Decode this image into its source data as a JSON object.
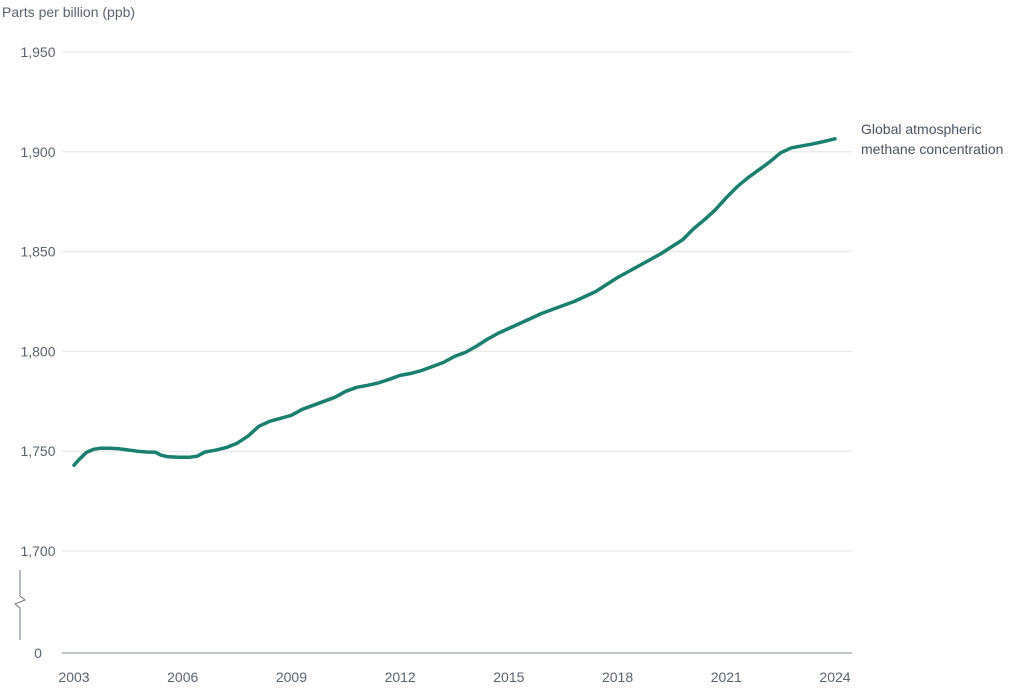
{
  "chart_data": {
    "type": "line",
    "ylabel": "Parts per billion (ppb)",
    "yticks": [
      "0",
      "1,700",
      "1,750",
      "1,800",
      "1,850",
      "1,900",
      "1,950"
    ],
    "xticks": [
      "2003",
      "2006",
      "2009",
      "2012",
      "2015",
      "2018",
      "2021",
      "2024"
    ],
    "y_axis_break": true,
    "ylim": [
      1700,
      1950
    ],
    "xlim": [
      2003,
      2024
    ],
    "grid": true,
    "series": [
      {
        "name_lines": [
          "Global atmospheric",
          "methane concentration"
        ],
        "color": "#1a7f6e",
        "points": [
          [
            2003.0,
            1743.0
          ],
          [
            2003.15,
            1746.0
          ],
          [
            2003.35,
            1749.5
          ],
          [
            2003.55,
            1751.0
          ],
          [
            2003.75,
            1751.5
          ],
          [
            2004.0,
            1751.5
          ],
          [
            2004.25,
            1751.2
          ],
          [
            2004.5,
            1750.6
          ],
          [
            2004.75,
            1750.0
          ],
          [
            2005.0,
            1749.6
          ],
          [
            2005.25,
            1749.5
          ],
          [
            2005.4,
            1748.0
          ],
          [
            2005.6,
            1747.2
          ],
          [
            2005.9,
            1747.0
          ],
          [
            2006.2,
            1747.0
          ],
          [
            2006.4,
            1747.5
          ],
          [
            2006.6,
            1749.5
          ],
          [
            2006.9,
            1750.5
          ],
          [
            2007.2,
            1751.8
          ],
          [
            2007.5,
            1754.0
          ],
          [
            2007.8,
            1757.5
          ],
          [
            2008.1,
            1762.5
          ],
          [
            2008.4,
            1765.0
          ],
          [
            2008.7,
            1766.5
          ],
          [
            2009.0,
            1768.0
          ],
          [
            2009.3,
            1771.0
          ],
          [
            2009.6,
            1773.0
          ],
          [
            2009.9,
            1775.0
          ],
          [
            2010.2,
            1777.0
          ],
          [
            2010.5,
            1780.0
          ],
          [
            2010.8,
            1782.0
          ],
          [
            2011.1,
            1783.0
          ],
          [
            2011.4,
            1784.2
          ],
          [
            2011.7,
            1786.0
          ],
          [
            2012.0,
            1788.0
          ],
          [
            2012.3,
            1789.0
          ],
          [
            2012.6,
            1790.5
          ],
          [
            2012.9,
            1792.5
          ],
          [
            2013.2,
            1794.5
          ],
          [
            2013.5,
            1797.5
          ],
          [
            2013.8,
            1799.5
          ],
          [
            2014.1,
            1802.5
          ],
          [
            2014.4,
            1806.0
          ],
          [
            2014.7,
            1809.0
          ],
          [
            2015.0,
            1811.5
          ],
          [
            2015.3,
            1814.0
          ],
          [
            2015.6,
            1816.5
          ],
          [
            2015.9,
            1819.0
          ],
          [
            2016.2,
            1821.0
          ],
          [
            2016.5,
            1823.0
          ],
          [
            2016.8,
            1825.0
          ],
          [
            2017.1,
            1827.5
          ],
          [
            2017.4,
            1830.0
          ],
          [
            2017.7,
            1833.5
          ],
          [
            2018.0,
            1837.0
          ],
          [
            2018.3,
            1840.0
          ],
          [
            2018.6,
            1843.0
          ],
          [
            2018.9,
            1846.0
          ],
          [
            2019.2,
            1849.0
          ],
          [
            2019.5,
            1852.5
          ],
          [
            2019.8,
            1856.0
          ],
          [
            2020.1,
            1861.5
          ],
          [
            2020.4,
            1866.0
          ],
          [
            2020.7,
            1871.0
          ],
          [
            2021.0,
            1877.0
          ],
          [
            2021.3,
            1882.5
          ],
          [
            2021.6,
            1887.0
          ],
          [
            2021.9,
            1891.0
          ],
          [
            2022.2,
            1895.0
          ],
          [
            2022.5,
            1899.5
          ],
          [
            2022.8,
            1902.0
          ],
          [
            2023.1,
            1903.0
          ],
          [
            2023.4,
            1904.0
          ],
          [
            2023.7,
            1905.2
          ],
          [
            2024.0,
            1906.5
          ]
        ]
      }
    ]
  }
}
